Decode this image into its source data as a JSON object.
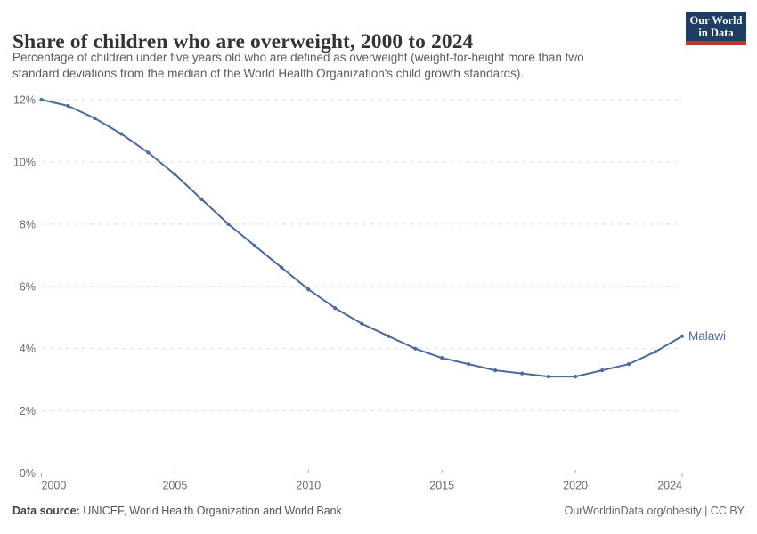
{
  "header": {
    "title": "Share of children who are overweight, 2000 to 2024",
    "subtitle_line1": "Percentage of children under five years old who are defined as overweight (weight-for-height more than two",
    "subtitle_line2": "standard deviations from the median of the World Health Organization's child growth standards).",
    "logo_line1": "Our World",
    "logo_line2": "in Data"
  },
  "chart_data": {
    "type": "line",
    "title": "Share of children who are overweight, 2000 to 2024",
    "x": [
      2000,
      2001,
      2002,
      2003,
      2004,
      2005,
      2006,
      2007,
      2008,
      2009,
      2010,
      2011,
      2012,
      2013,
      2014,
      2015,
      2016,
      2017,
      2018,
      2019,
      2020,
      2021,
      2022,
      2023,
      2024
    ],
    "series": [
      {
        "name": "Malawi",
        "values": [
          12.0,
          11.8,
          11.4,
          10.9,
          10.3,
          9.6,
          8.8,
          8.0,
          7.3,
          6.6,
          5.9,
          5.3,
          4.8,
          4.4,
          4.0,
          3.7,
          3.5,
          3.3,
          3.2,
          3.1,
          3.1,
          3.3,
          3.5,
          3.9,
          4.4
        ],
        "color": "#4C6A9C"
      }
    ],
    "xlabel": "",
    "ylabel": "",
    "ylim": [
      0,
      12
    ],
    "xlim": [
      2000,
      2024
    ],
    "ytick_values": [
      0,
      2,
      4,
      6,
      8,
      10,
      12
    ],
    "ytick_labels": [
      "0%",
      "2%",
      "4%",
      "6%",
      "8%",
      "10%",
      "12%"
    ],
    "xtick_values": [
      2000,
      2005,
      2010,
      2015,
      2020,
      2024
    ],
    "xtick_labels": [
      "2000",
      "2005",
      "2010",
      "2015",
      "2020",
      "2024"
    ],
    "grid": "horizontal-dashed",
    "legend_position": "line-end-label"
  },
  "footer": {
    "datasource_label": "Data source:",
    "datasource_value": "UNICEF, World Health Organization and World Bank",
    "credit": "OurWorldinData.org/obesity | CC BY"
  },
  "colors": {
    "line": "#4C6A9C",
    "series_label": "#4C6A9C",
    "gridline": "#dddddd",
    "axis": "#a7a7a7",
    "tick_label": "#6b6b6b",
    "title": "#333333",
    "subtitle": "#5b5b5b",
    "logo_background": "#1d3d63",
    "logo_accent": "#c0362c"
  }
}
